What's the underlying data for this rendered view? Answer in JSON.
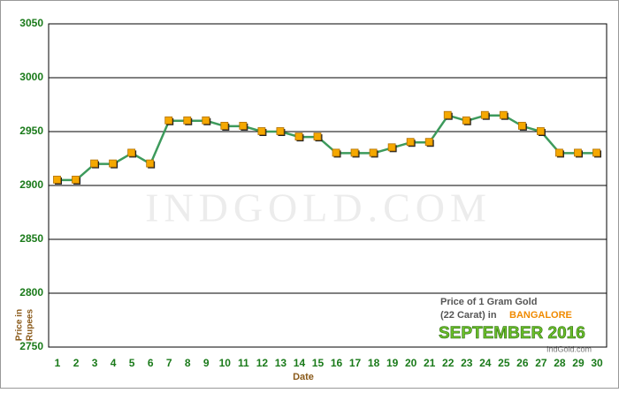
{
  "chart_data": {
    "type": "line",
    "xlabel": "Date",
    "ylabel_lines": [
      "Price in",
      "Rupees"
    ],
    "watermark": "IndGold.com",
    "caption": {
      "line1": "Price of 1 Gram Gold",
      "line2": "(22 Carat) in",
      "city": "BANGALORE",
      "month": "SEPTEMBER 2016",
      "site": "IndGold.com"
    },
    "categories": [
      "1",
      "2",
      "3",
      "4",
      "5",
      "6",
      "7",
      "8",
      "9",
      "10",
      "11",
      "12",
      "13",
      "14",
      "15",
      "16",
      "17",
      "18",
      "19",
      "20",
      "21",
      "22",
      "23",
      "24",
      "25",
      "26",
      "27",
      "28",
      "29",
      "30"
    ],
    "series": [
      {
        "name": "Price",
        "color": "#3d9a5c",
        "values": [
          2905,
          2905,
          2920,
          2920,
          2930,
          2920,
          2960,
          2960,
          2960,
          2955,
          2955,
          2950,
          2950,
          2945,
          2945,
          2930,
          2930,
          2930,
          2935,
          2940,
          2940,
          2965,
          2960,
          2965,
          2965,
          2955,
          2950,
          2930,
          2930,
          2930
        ]
      }
    ],
    "marker_color": "#f5a800",
    "ylim": [
      2750,
      3050
    ],
    "yticks": [
      2750,
      2800,
      2850,
      2900,
      2950,
      3000,
      3050
    ],
    "grid": true
  }
}
